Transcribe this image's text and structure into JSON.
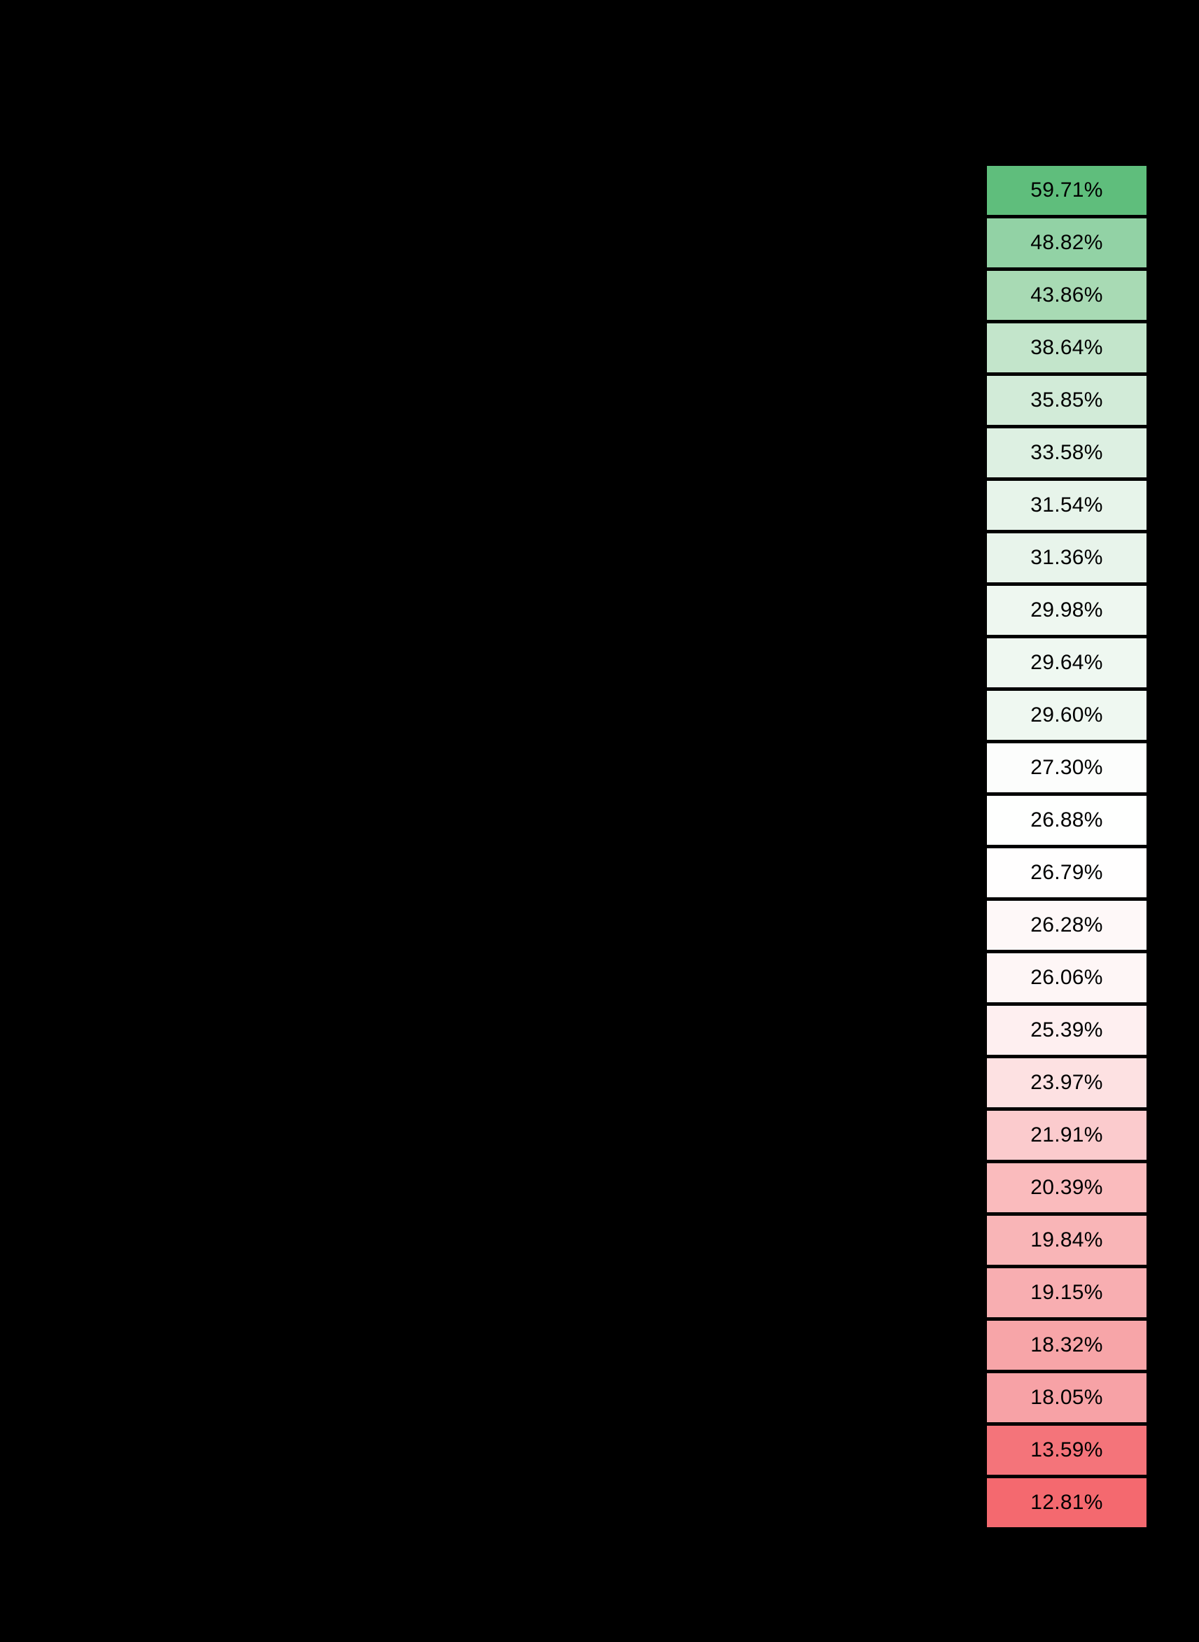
{
  "page": {
    "background_color": "#000000"
  },
  "chart_data": {
    "type": "heatmap",
    "orientation": "single-column",
    "title": "",
    "value_format": "percent",
    "values": [
      59.71,
      48.82,
      43.86,
      38.64,
      35.85,
      33.58,
      31.54,
      31.36,
      29.98,
      29.64,
      29.6,
      27.3,
      26.88,
      26.79,
      26.28,
      26.06,
      25.39,
      23.97,
      21.91,
      20.39,
      19.84,
      19.15,
      18.32,
      18.05,
      13.59,
      12.81
    ],
    "labels": [
      "59.71%",
      "48.82%",
      "43.86%",
      "38.64%",
      "35.85%",
      "33.58%",
      "31.54%",
      "31.36%",
      "29.98%",
      "29.64%",
      "29.60%",
      "27.30%",
      "26.88%",
      "26.79%",
      "26.28%",
      "26.06%",
      "25.39%",
      "23.97%",
      "21.91%",
      "20.39%",
      "19.84%",
      "19.15%",
      "18.32%",
      "18.05%",
      "13.59%",
      "12.81%"
    ],
    "cell_colors": [
      "#5fbe7c",
      "#92d2a5",
      "#a8dab4",
      "#c3e5cb",
      "#d2ebd8",
      "#ddf0e2",
      "#e7f4ea",
      "#e8f4eb",
      "#eef7f0",
      "#eff8f1",
      "#eff8f1",
      "#fcfdfc",
      "#fefffe",
      "#fffefe",
      "#fef8f8",
      "#fef6f6",
      "#feeff0",
      "#fde1e2",
      "#fbcbcd",
      "#fabbbd",
      "#f9b5b7",
      "#f8aeb1",
      "#f7a5a8",
      "#f7a2a6",
      "#f4747a",
      "#f4696f"
    ],
    "text_color": "#000000",
    "color_scale": {
      "max_color": "#5fbe7c",
      "mid_color": "#ffffff",
      "min_color": "#f4696f",
      "max_value": 59.71,
      "mid_value": 26.84,
      "min_value": 12.81
    },
    "legend": "none",
    "grid": "off",
    "sorted": "descending"
  }
}
